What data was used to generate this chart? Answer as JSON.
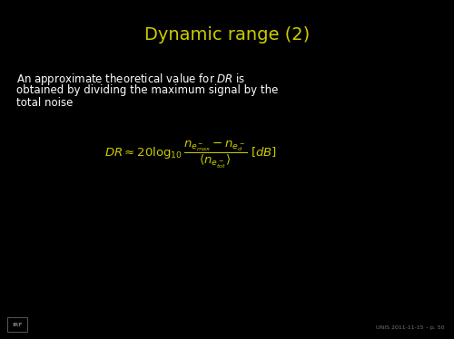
{
  "background_color": "#000000",
  "title": "Dynamic range (2)",
  "title_color": "#cccc00",
  "title_fontsize": 14,
  "body_text_line1": "An approximate theoretical value for $DR$ is",
  "body_text_line2": "obtained by dividing the maximum signal by the",
  "body_text_line3": "total noise",
  "body_color": "#ffffff",
  "body_fontsize": 8.5,
  "formula": "$DR \\approx 20\\log_{10}\\dfrac{n_{e^-_{max}} - n_{e^-_d}}{\\langle n_{e^-_{tot}} \\rangle}\\ [dB]$",
  "formula_color": "#cccc00",
  "formula_fontsize": 9.5,
  "footer_left": "IRF",
  "footer_right": "UNIS 2011-11-15 – p. 50",
  "footer_color": "#777777",
  "footer_fontsize": 4.5
}
